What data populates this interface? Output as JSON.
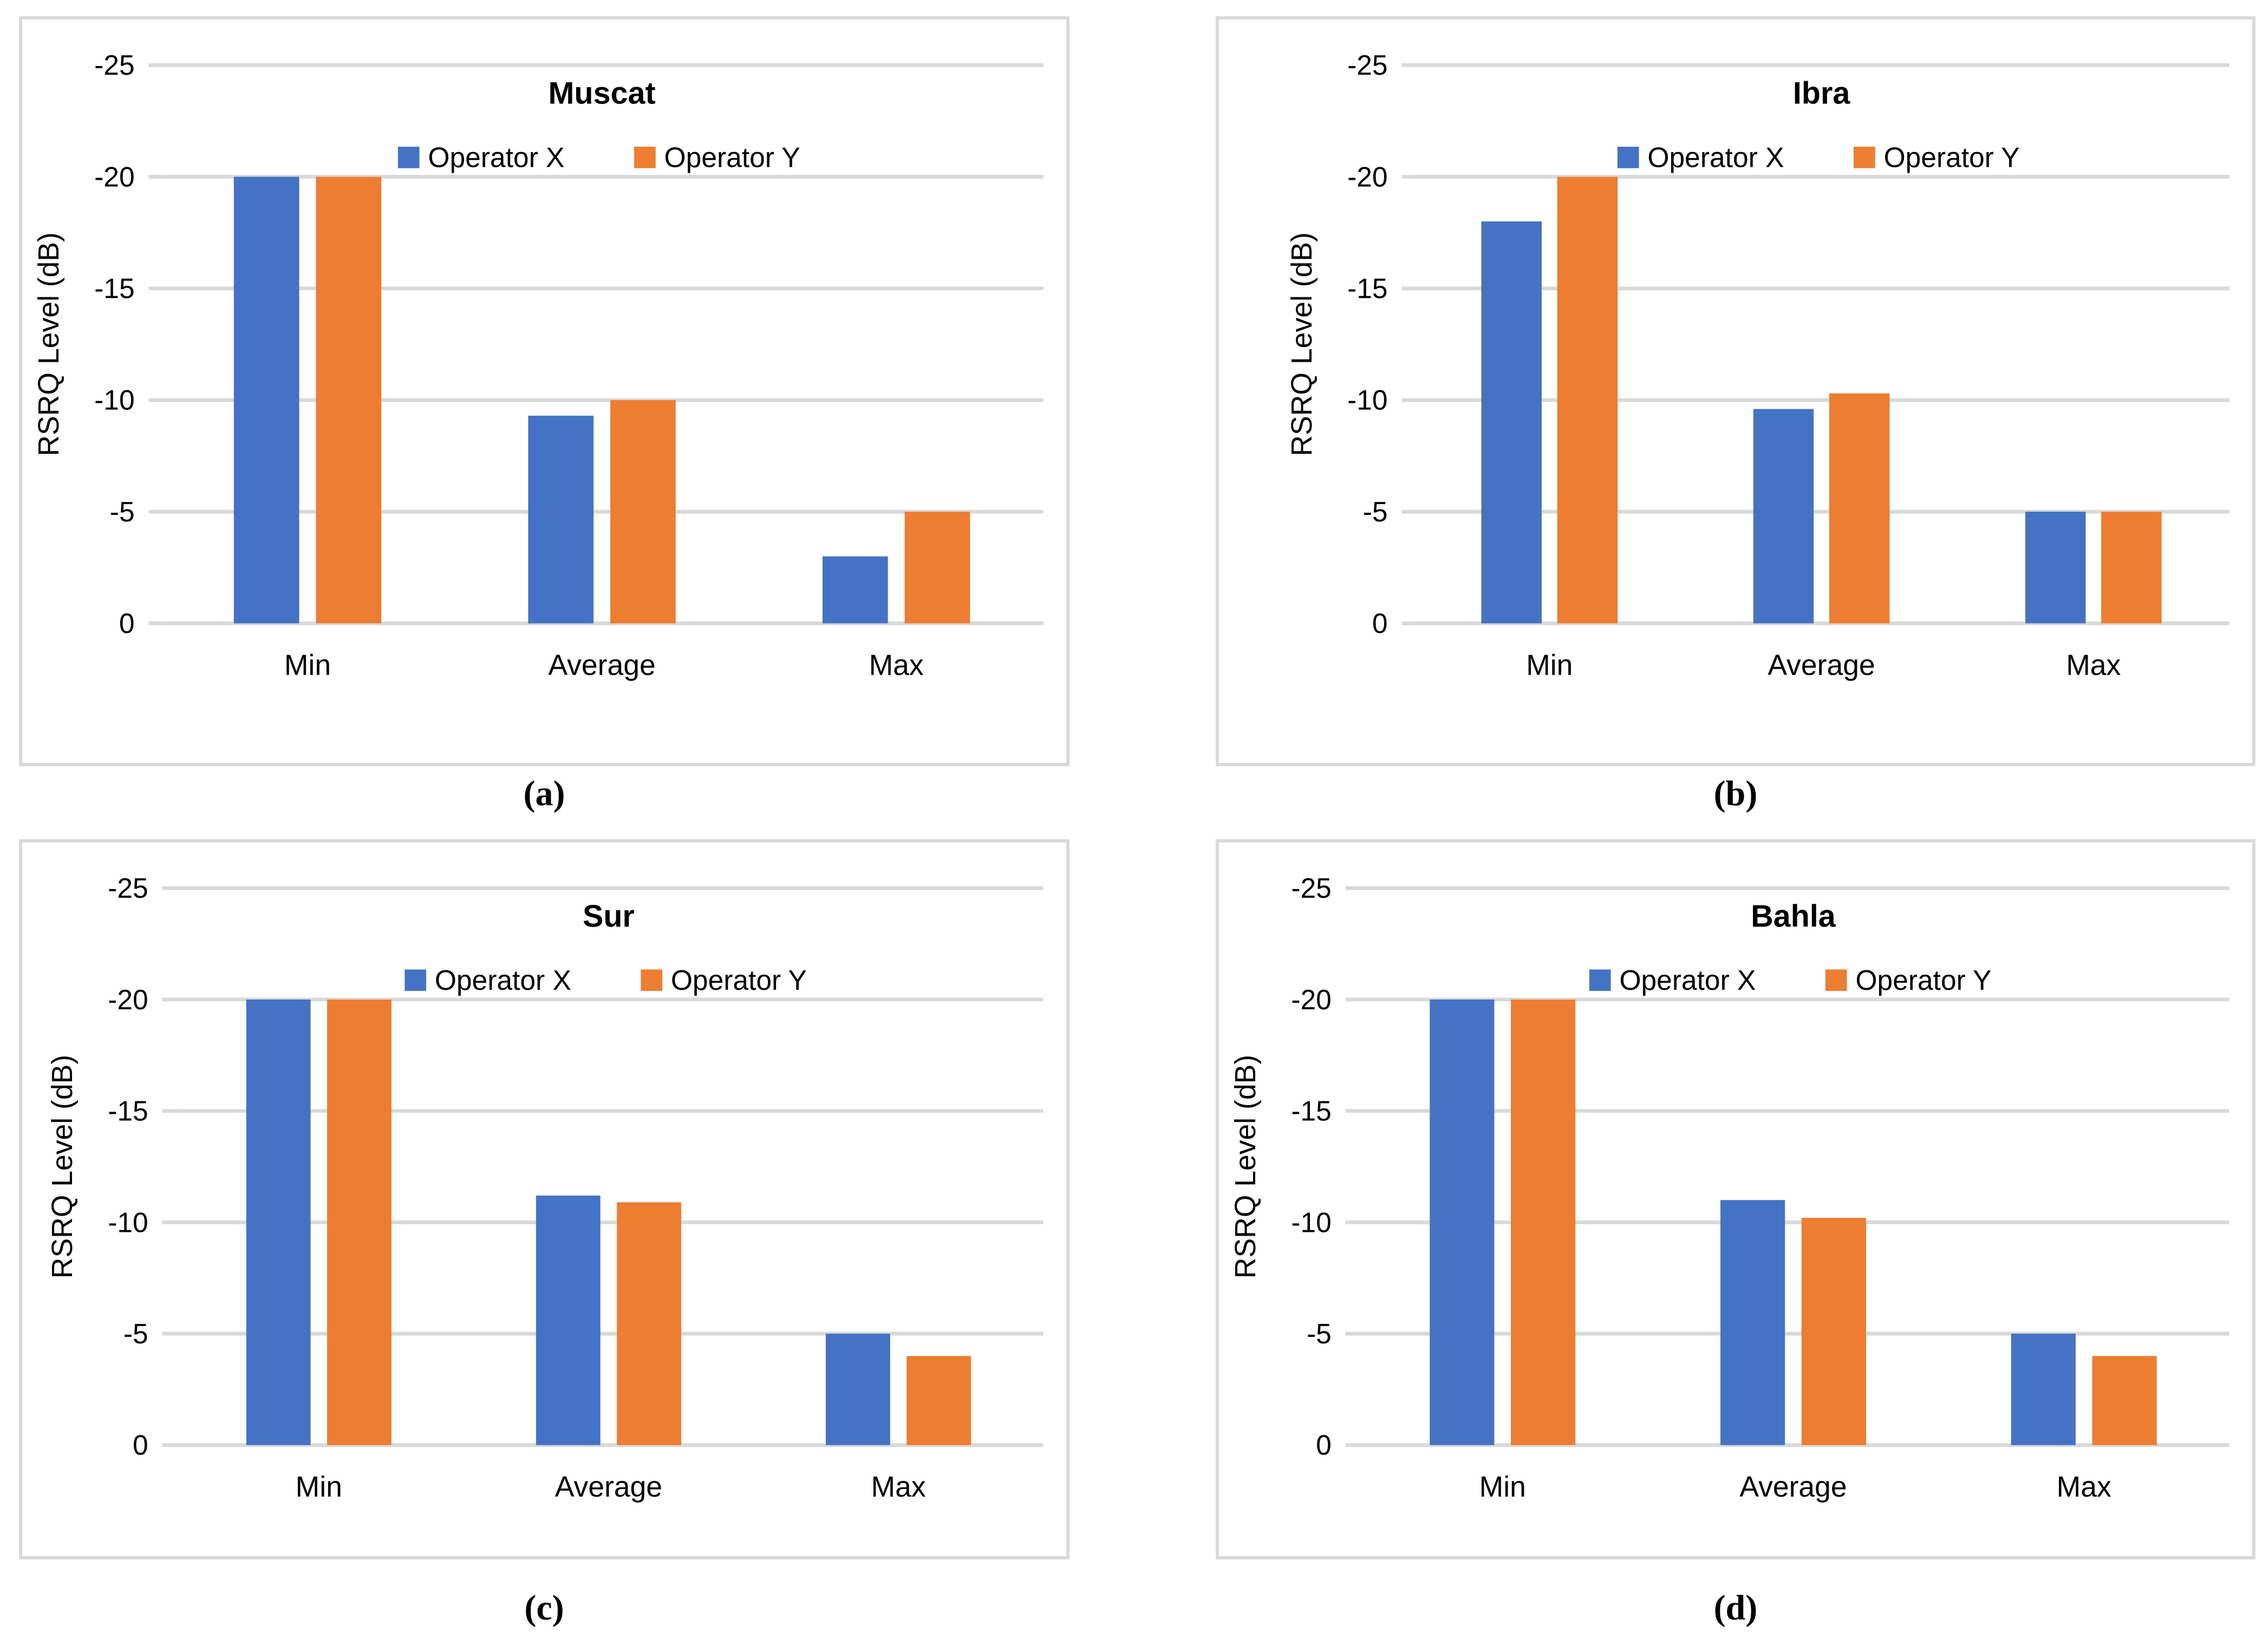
{
  "figure": {
    "background": "#ffffff",
    "captions": {
      "a": "(a)",
      "b": "(b)",
      "c": "(c)",
      "d": "(d)"
    }
  },
  "colors": {
    "operator_x": "#4472C4",
    "operator_y": "#ED7D31",
    "gridline": "#D9D9D9",
    "panel_border": "#D9D9D9",
    "text": "#000000"
  },
  "chart_data": [
    {
      "type": "bar",
      "title": "Muscat",
      "caption": "(a)",
      "xlabel": "",
      "ylabel": "RSRQ Level (dB)",
      "ylim": [
        -25,
        0
      ],
      "yticks": [
        -25,
        -20,
        -15,
        -10,
        -5,
        0
      ],
      "axis_reversed": true,
      "grid": true,
      "legend_position": "top-center-inside",
      "categories": [
        "Min",
        "Average",
        "Max"
      ],
      "series": [
        {
          "name": "Operator X",
          "color_key": "operator_x",
          "values": [
            -20,
            -9.3,
            -3
          ]
        },
        {
          "name": "Operator Y",
          "color_key": "operator_y",
          "values": [
            -20,
            -10,
            -5
          ]
        }
      ]
    },
    {
      "type": "bar",
      "title": "Ibra",
      "caption": "(b)",
      "xlabel": "",
      "ylabel": "RSRQ Level (dB)",
      "ylim": [
        -25,
        0
      ],
      "yticks": [
        -25,
        -20,
        -15,
        -10,
        -5,
        0
      ],
      "axis_reversed": true,
      "grid": true,
      "legend_position": "top-center-inside",
      "categories": [
        "Min",
        "Average",
        "Max"
      ],
      "series": [
        {
          "name": "Operator X",
          "color_key": "operator_x",
          "values": [
            -18,
            -9.6,
            -5
          ]
        },
        {
          "name": "Operator Y",
          "color_key": "operator_y",
          "values": [
            -20,
            -10.3,
            -5
          ]
        }
      ]
    },
    {
      "type": "bar",
      "title": "Sur",
      "caption": "(c)",
      "xlabel": "",
      "ylabel": "RSRQ Level (dB)",
      "ylim": [
        -25,
        0
      ],
      "yticks": [
        -25,
        -20,
        -15,
        -10,
        -5,
        0
      ],
      "axis_reversed": true,
      "grid": true,
      "legend_position": "top-center-inside",
      "categories": [
        "Min",
        "Average",
        "Max"
      ],
      "series": [
        {
          "name": "Operator X",
          "color_key": "operator_x",
          "values": [
            -20,
            -11.2,
            -5
          ]
        },
        {
          "name": "Operator Y",
          "color_key": "operator_y",
          "values": [
            -20,
            -10.9,
            -4
          ]
        }
      ]
    },
    {
      "type": "bar",
      "title": "Bahla",
      "caption": "(d)",
      "xlabel": "",
      "ylabel": "RSRQ Level (dB)",
      "ylim": [
        -25,
        0
      ],
      "yticks": [
        -25,
        -20,
        -15,
        -10,
        -5,
        0
      ],
      "axis_reversed": true,
      "grid": true,
      "legend_position": "top-center-inside",
      "categories": [
        "Min",
        "Average",
        "Max"
      ],
      "series": [
        {
          "name": "Operator X",
          "color_key": "operator_x",
          "values": [
            -20,
            -11,
            -5
          ]
        },
        {
          "name": "Operator Y",
          "color_key": "operator_y",
          "values": [
            -20,
            -10.2,
            -4
          ]
        }
      ]
    }
  ]
}
